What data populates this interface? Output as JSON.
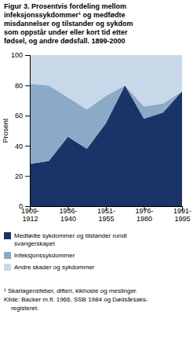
{
  "chart_data": {
    "type": "area",
    "stacked": true,
    "title": "Figur 3. Prosentvis fordeling mellom\ninfeksjonssykdommer¹ og medfødte\nmisdannelser og tilstander og sykdom\nsom oppstår under eller kort tid etter\nfødsel, og andre dødsfall. 1899-2000",
    "y_label": "Prosent",
    "categories": [
      "1909-\n1912",
      null,
      "1936-\n1940",
      null,
      "1951-\n1955",
      null,
      "1976-\n1980",
      null,
      "1991-\n1995"
    ],
    "series": [
      {
        "name": "Medfødte sykdommer og tilstander rundt\nsvangerskapet",
        "color": "#1a3368",
        "values": [
          28,
          30,
          46,
          38,
          55,
          80,
          58,
          62,
          76
        ]
      },
      {
        "name": "Infeksjonssykdommer",
        "color": "#8aaac8",
        "values": [
          53,
          50,
          26,
          26,
          18,
          0,
          8,
          6,
          0
        ]
      },
      {
        "name": "Andre skader og sykdommer",
        "color": "#c8d8e8",
        "values": [
          19,
          20,
          28,
          36,
          27,
          20,
          34,
          32,
          24
        ]
      }
    ],
    "ylim": [
      0,
      100
    ],
    "yticks": [
      0,
      20,
      40,
      60,
      80,
      100
    ],
    "legend": "bottom",
    "annotations": [
      "¹ Skarlagensfeber, difteri, kikhoste og meslinger.\nKilde: Backer m.fl. 1966, SSB 1984 og Dødsårsaks-\n    registeret."
    ]
  }
}
